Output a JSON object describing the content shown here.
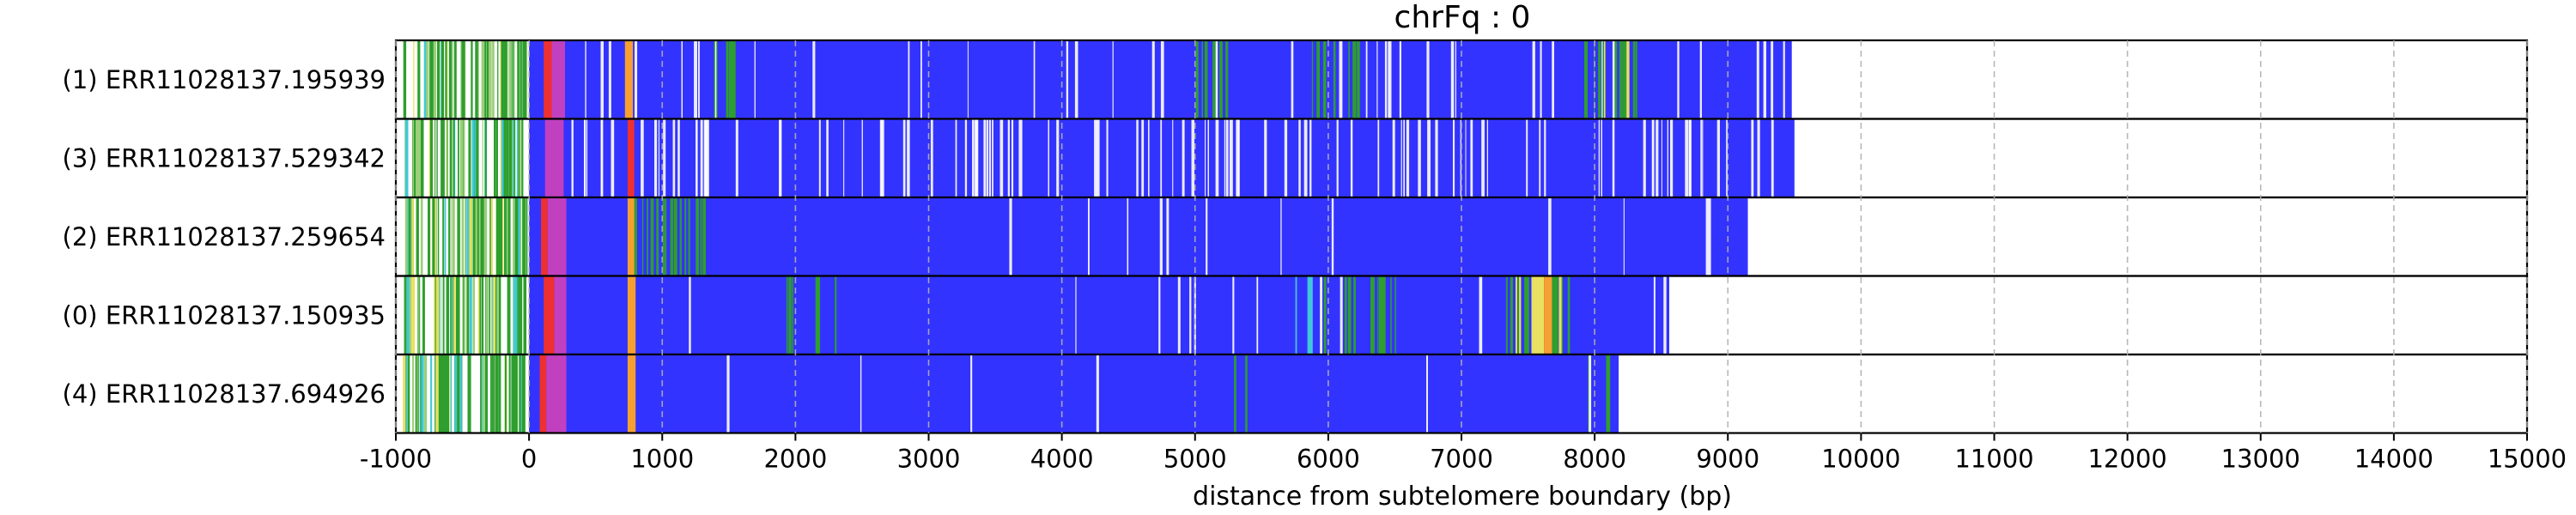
{
  "chart_data": {
    "type": "track",
    "title": "chrFq : 0",
    "xlabel": "distance from subtelomere boundary (bp)",
    "xlim": [
      -1000,
      15000
    ],
    "xticks": [
      -1000,
      0,
      1000,
      2000,
      3000,
      4000,
      5000,
      6000,
      7000,
      8000,
      9000,
      10000,
      11000,
      12000,
      13000,
      14000,
      15000
    ],
    "grid": "vertical dashed",
    "colors": {
      "repeat": "#3333ff",
      "green": "#2e9e2e",
      "yellow": "#e8e060",
      "orange": "#f5a030",
      "red": "#ee3030",
      "magenta": "#c040c0",
      "cyan": "#40c8d8",
      "white": "#ffffff"
    },
    "reads": [
      {
        "label": "(1) ERR11028137.195939",
        "start": -1000,
        "end": 9480,
        "segments": [
          {
            "start": 110,
            "end": 170,
            "color": "red"
          },
          {
            "start": 170,
            "end": 270,
            "color": "magenta"
          },
          {
            "start": 720,
            "end": 780,
            "color": "orange"
          }
        ],
        "dense": [
          {
            "start": 1300,
            "end": 1600,
            "color": "green",
            "density": 0.25
          },
          {
            "start": 5000,
            "end": 5250,
            "color": "green",
            "density": 0.35
          },
          {
            "start": 5800,
            "end": 6300,
            "color": "green",
            "density": 0.25
          },
          {
            "start": 7900,
            "end": 8400,
            "color": "green",
            "density": 0.3
          },
          {
            "start": 8000,
            "end": 8300,
            "color": "yellow",
            "density": 0.1
          },
          {
            "start": 300,
            "end": 9480,
            "color": "white",
            "density": 0.06
          }
        ]
      },
      {
        "label": "(3) ERR11028137.529342",
        "start": -1000,
        "end": 9500,
        "segments": [
          {
            "start": 120,
            "end": 260,
            "color": "magenta"
          },
          {
            "start": 740,
            "end": 790,
            "color": "red"
          }
        ],
        "dense": [
          {
            "start": 300,
            "end": 9500,
            "color": "white",
            "density": 0.14
          },
          {
            "start": 3200,
            "end": 3700,
            "color": "white",
            "density": 0.3
          }
        ]
      },
      {
        "label": "(2) ERR11028137.259654",
        "start": -1000,
        "end": 9150,
        "segments": [
          {
            "start": 90,
            "end": 140,
            "color": "red"
          },
          {
            "start": 140,
            "end": 280,
            "color": "magenta"
          },
          {
            "start": 740,
            "end": 790,
            "color": "orange"
          }
        ],
        "dense": [
          {
            "start": 750,
            "end": 1320,
            "color": "green",
            "density": 0.45
          },
          {
            "start": 1300,
            "end": 9150,
            "color": "white",
            "density": 0.02
          }
        ]
      },
      {
        "label": "(0) ERR11028137.150935",
        "start": -1000,
        "end": 8560,
        "segments": [
          {
            "start": 110,
            "end": 190,
            "color": "red"
          },
          {
            "start": 190,
            "end": 280,
            "color": "magenta"
          },
          {
            "start": 740,
            "end": 800,
            "color": "orange"
          },
          {
            "start": 7540,
            "end": 7620,
            "color": "yellow"
          },
          {
            "start": 7620,
            "end": 7680,
            "color": "orange"
          }
        ],
        "dense": [
          {
            "start": 1900,
            "end": 2300,
            "color": "green",
            "density": 0.2
          },
          {
            "start": 5900,
            "end": 6500,
            "color": "green",
            "density": 0.4
          },
          {
            "start": 7300,
            "end": 7800,
            "color": "green",
            "density": 0.45
          },
          {
            "start": 7400,
            "end": 7750,
            "color": "yellow",
            "density": 0.2
          },
          {
            "start": 5700,
            "end": 5900,
            "color": "cyan",
            "density": 0.2
          },
          {
            "start": 300,
            "end": 8560,
            "color": "white",
            "density": 0.02
          }
        ]
      },
      {
        "label": "(4) ERR11028137.694926",
        "start": -1000,
        "end": 8180,
        "segments": [
          {
            "start": 80,
            "end": 130,
            "color": "red"
          },
          {
            "start": 130,
            "end": 280,
            "color": "magenta"
          },
          {
            "start": 740,
            "end": 800,
            "color": "orange"
          }
        ],
        "dense": [
          {
            "start": 5000,
            "end": 5400,
            "color": "green",
            "density": 0.08
          },
          {
            "start": 7900,
            "end": 8100,
            "color": "green",
            "density": 0.25
          },
          {
            "start": 300,
            "end": 8180,
            "color": "white",
            "density": 0.01
          }
        ]
      }
    ]
  }
}
